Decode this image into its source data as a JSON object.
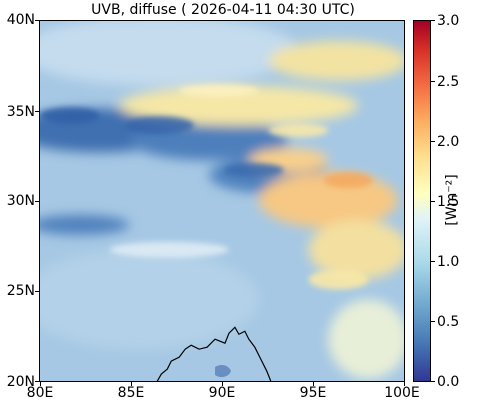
{
  "title": "UVB, diffuse ( 2026-04-11 04:30 UTC)",
  "map": {
    "lon_range": [
      80,
      100
    ],
    "lat_range": [
      20,
      40
    ],
    "lat_ticks": [
      {
        "value": 40,
        "label": "40N"
      },
      {
        "value": 35,
        "label": "35N"
      },
      {
        "value": 30,
        "label": "30N"
      },
      {
        "value": 25,
        "label": "25N"
      },
      {
        "value": 20,
        "label": "20N"
      }
    ],
    "lon_ticks": [
      {
        "value": 80,
        "label": "80E"
      },
      {
        "value": 85,
        "label": "85E"
      },
      {
        "value": 90,
        "label": "90E"
      },
      {
        "value": 95,
        "label": "95E"
      },
      {
        "value": 100,
        "label": "100E"
      }
    ]
  },
  "colorbar": {
    "min": 0.0,
    "max": 3.0,
    "ticks": [
      {
        "value": 0.0,
        "label": "0.0"
      },
      {
        "value": 0.5,
        "label": "0.5"
      },
      {
        "value": 1.0,
        "label": "1.0"
      },
      {
        "value": 1.5,
        "label": "1.5"
      },
      {
        "value": 2.0,
        "label": "2.0"
      },
      {
        "value": 2.5,
        "label": "2.5"
      },
      {
        "value": 3.0,
        "label": "3.0"
      }
    ],
    "unit": "[Wm⁻²]",
    "colormap": [
      "#313695",
      "#4575b4",
      "#74add1",
      "#abd9e9",
      "#e0f3f8",
      "#ffffbf",
      "#fee090",
      "#fdae61",
      "#f46d43",
      "#d73027",
      "#a50026"
    ]
  }
}
